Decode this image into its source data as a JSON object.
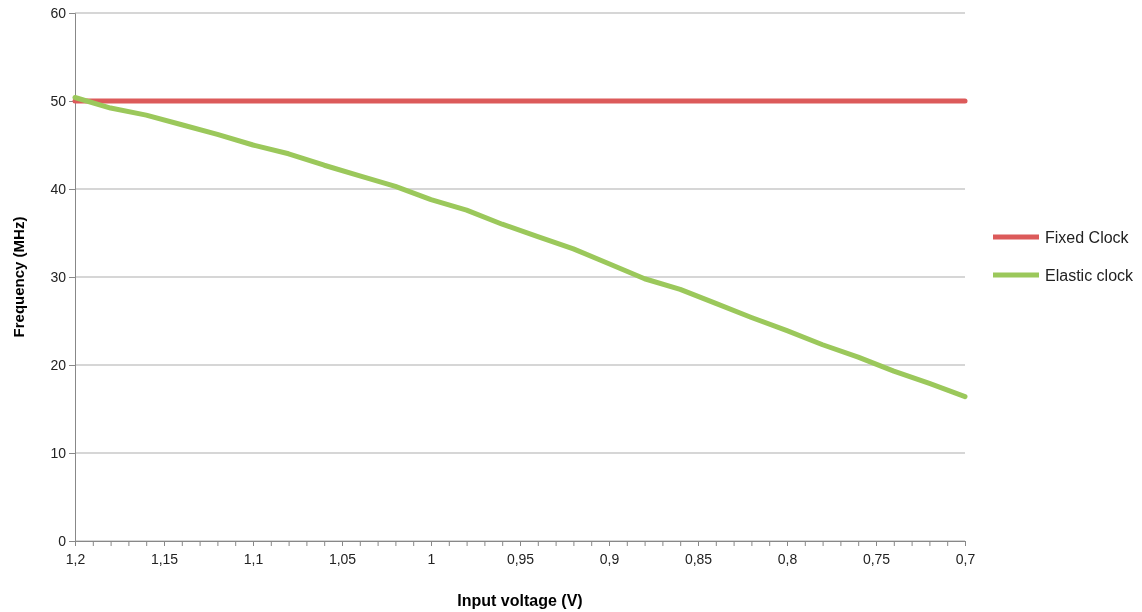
{
  "chart_data": {
    "type": "line",
    "xlabel": "Input voltage (V)",
    "ylabel": "Frequency (MHz)",
    "x": [
      1.2,
      1.18,
      1.16,
      1.14,
      1.12,
      1.1,
      1.08,
      1.06,
      1.04,
      1.02,
      1.0,
      0.98,
      0.96,
      0.94,
      0.92,
      0.9,
      0.88,
      0.86,
      0.84,
      0.82,
      0.8,
      0.78,
      0.76,
      0.74,
      0.72,
      0.7
    ],
    "series": [
      {
        "name": "Fixed Clock",
        "color": "#dc5a5a",
        "values": [
          50,
          50,
          50,
          50,
          50,
          50,
          50,
          50,
          50,
          50,
          50,
          50,
          50,
          50,
          50,
          50,
          50,
          50,
          50,
          50,
          50,
          50,
          50,
          50,
          50,
          50
        ]
      },
      {
        "name": "Elastic clock",
        "color": "#9bc85b",
        "values": [
          50.4,
          49.2,
          48.4,
          47.3,
          46.2,
          45.0,
          44.0,
          42.7,
          41.5,
          40.3,
          38.8,
          37.6,
          36.0,
          34.6,
          33.2,
          31.5,
          29.8,
          28.6,
          27.0,
          25.4,
          23.9,
          22.3,
          20.9,
          19.3,
          17.9,
          16.4
        ]
      }
    ],
    "xlim": [
      1.2,
      0.7
    ],
    "xticks": [
      {
        "value": 1.2,
        "label": "1,2"
      },
      {
        "value": 1.19,
        "label": null
      },
      {
        "value": 1.18,
        "label": null
      },
      {
        "value": 1.17,
        "label": null
      },
      {
        "value": 1.16,
        "label": null
      },
      {
        "value": 1.15,
        "label": "1,15"
      },
      {
        "value": 1.14,
        "label": null
      },
      {
        "value": 1.13,
        "label": null
      },
      {
        "value": 1.12,
        "label": null
      },
      {
        "value": 1.11,
        "label": null
      },
      {
        "value": 1.1,
        "label": "1,1"
      },
      {
        "value": 1.09,
        "label": null
      },
      {
        "value": 1.08,
        "label": null
      },
      {
        "value": 1.07,
        "label": null
      },
      {
        "value": 1.06,
        "label": null
      },
      {
        "value": 1.05,
        "label": "1,05"
      },
      {
        "value": 1.04,
        "label": null
      },
      {
        "value": 1.03,
        "label": null
      },
      {
        "value": 1.02,
        "label": null
      },
      {
        "value": 1.01,
        "label": null
      },
      {
        "value": 1.0,
        "label": "1"
      },
      {
        "value": 0.99,
        "label": null
      },
      {
        "value": 0.98,
        "label": null
      },
      {
        "value": 0.97,
        "label": null
      },
      {
        "value": 0.96,
        "label": null
      },
      {
        "value": 0.95,
        "label": "0,95"
      },
      {
        "value": 0.94,
        "label": null
      },
      {
        "value": 0.93,
        "label": null
      },
      {
        "value": 0.92,
        "label": null
      },
      {
        "value": 0.91,
        "label": null
      },
      {
        "value": 0.9,
        "label": "0,9"
      },
      {
        "value": 0.89,
        "label": null
      },
      {
        "value": 0.88,
        "label": null
      },
      {
        "value": 0.87,
        "label": null
      },
      {
        "value": 0.86,
        "label": null
      },
      {
        "value": 0.85,
        "label": "0,85"
      },
      {
        "value": 0.84,
        "label": null
      },
      {
        "value": 0.83,
        "label": null
      },
      {
        "value": 0.82,
        "label": null
      },
      {
        "value": 0.81,
        "label": null
      },
      {
        "value": 0.8,
        "label": "0,8"
      },
      {
        "value": 0.79,
        "label": null
      },
      {
        "value": 0.78,
        "label": null
      },
      {
        "value": 0.77,
        "label": null
      },
      {
        "value": 0.76,
        "label": null
      },
      {
        "value": 0.75,
        "label": "0,75"
      },
      {
        "value": 0.74,
        "label": null
      },
      {
        "value": 0.73,
        "label": null
      },
      {
        "value": 0.72,
        "label": null
      },
      {
        "value": 0.71,
        "label": null
      },
      {
        "value": 0.7,
        "label": "0,7"
      }
    ],
    "ylim": [
      0,
      60
    ],
    "yticks": [
      0,
      10,
      20,
      30,
      40,
      50,
      60
    ],
    "grid": "y",
    "legend": "right",
    "marker": "none",
    "line_style": "solid"
  }
}
